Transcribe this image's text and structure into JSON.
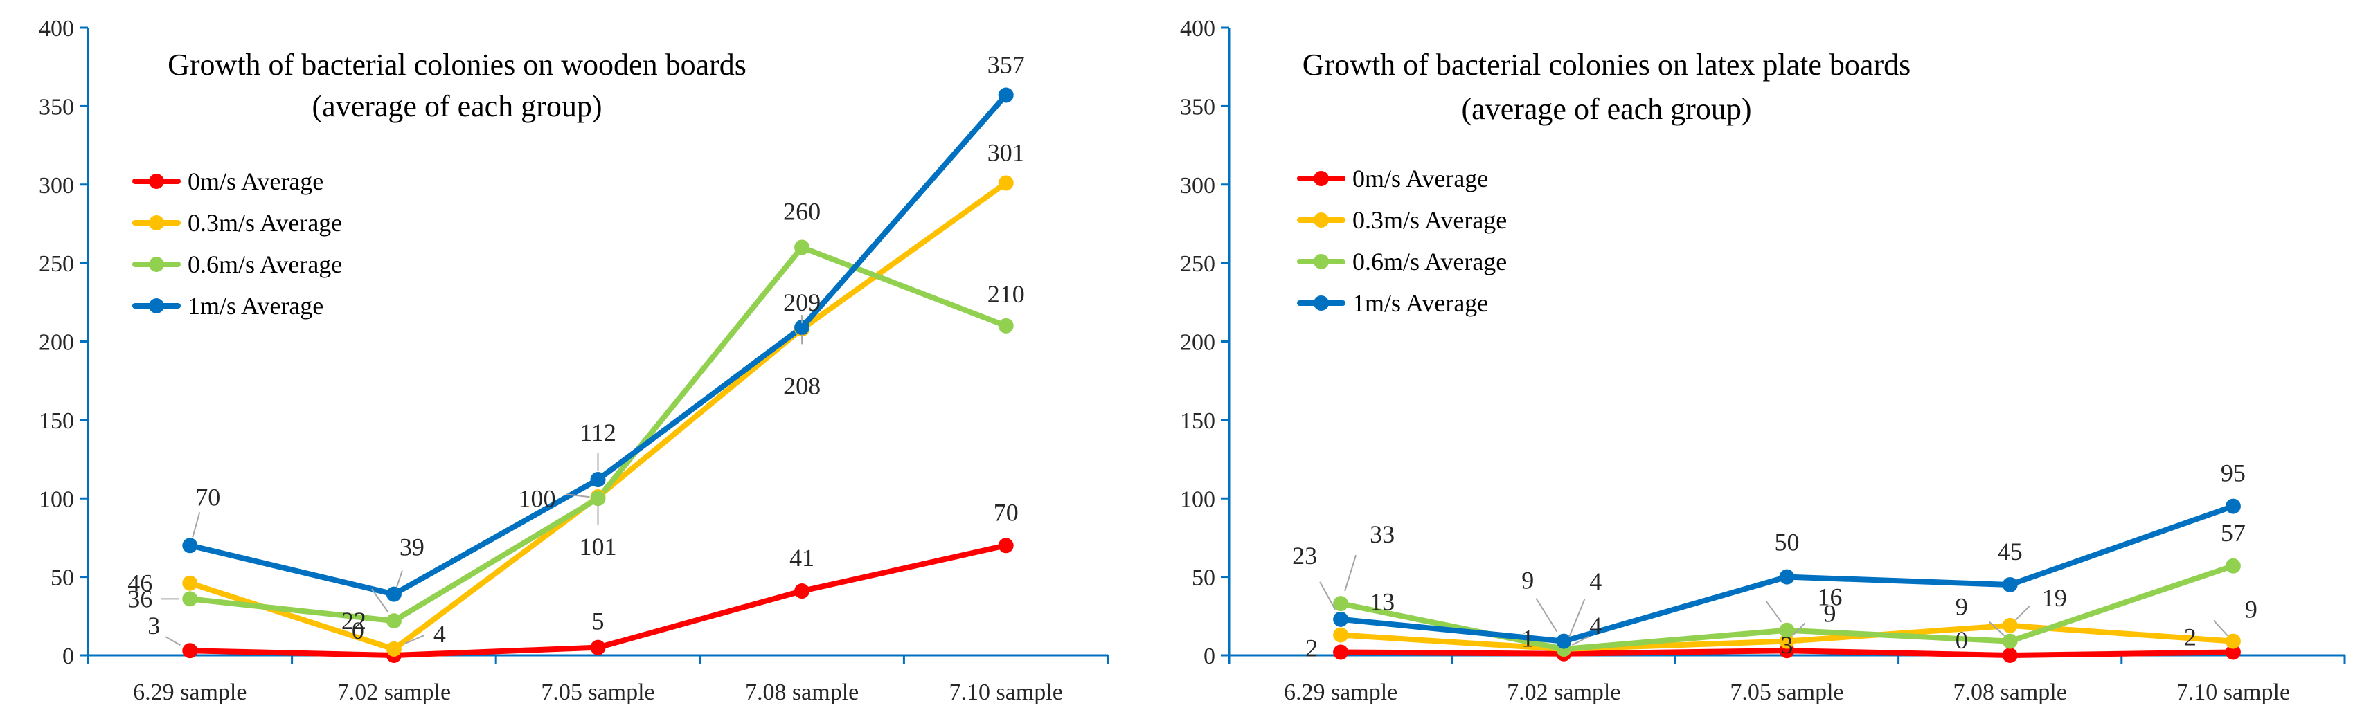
{
  "chart_data": [
    {
      "type": "line",
      "title": "Growth of bacterial colonies on wooden boards",
      "subtitle": "(average of each group)",
      "categories": [
        "6.29 sample",
        "7.02 sample",
        "7.05 sample",
        "7.08 sample",
        "7.10 sample"
      ],
      "ylim": [
        0,
        400
      ],
      "yticks": [
        "0",
        "50",
        "100",
        "150",
        "200",
        "250",
        "300",
        "350",
        "400"
      ],
      "legend_position": "upper-left",
      "series": [
        {
          "name": "0m/s Average",
          "color": "#ff0000",
          "values": [
            3,
            0,
            5,
            41,
            70
          ],
          "labels": [
            "3",
            "0",
            "5",
            "41",
            "70"
          ]
        },
        {
          "name": "0.3m/s Average",
          "color": "#ffc000",
          "values": [
            46,
            4,
            101,
            208,
            301
          ],
          "labels": [
            "46",
            "4",
            "101",
            "208",
            "301"
          ]
        },
        {
          "name": "0.6m/s Average",
          "color": "#92d050",
          "values": [
            36,
            22,
            100,
            260,
            210
          ],
          "labels": [
            "36",
            "22",
            "100",
            "260",
            "210"
          ]
        },
        {
          "name": "1m/s Average",
          "color": "#0070c0",
          "values": [
            70,
            39,
            112,
            209,
            357
          ],
          "labels": [
            "70",
            "39",
            "112",
            "209",
            "357"
          ]
        }
      ]
    },
    {
      "type": "line",
      "title": "Growth of bacterial colonies on latex plate boards",
      "subtitle": "(average of each group)",
      "categories": [
        "6.29 sample",
        "7.02 sample",
        "7.05 sample",
        "7.08 sample",
        "7.10 sample"
      ],
      "ylim": [
        0,
        400
      ],
      "yticks": [
        "0",
        "50",
        "100",
        "150",
        "200",
        "250",
        "300",
        "350",
        "400"
      ],
      "legend_position": "upper-left",
      "series": [
        {
          "name": "0m/s Average",
          "color": "#ff0000",
          "values": [
            2,
            1,
            3,
            0,
            2
          ],
          "labels": [
            "2",
            "1",
            "3",
            "0",
            "2"
          ]
        },
        {
          "name": "0.3m/s Average",
          "color": "#ffc000",
          "values": [
            13,
            4,
            9,
            19,
            9
          ],
          "labels": [
            "13",
            "4",
            "9",
            "19",
            "9"
          ]
        },
        {
          "name": "0.6m/s Average",
          "color": "#92d050",
          "values": [
            33,
            4,
            16,
            9,
            57
          ],
          "labels": [
            "33",
            "4",
            "16",
            "9",
            "57"
          ]
        },
        {
          "name": "1m/s Average",
          "color": "#0070c0",
          "values": [
            23,
            9,
            50,
            45,
            95
          ],
          "labels": [
            "23",
            "9",
            "50",
            "45",
            "95"
          ]
        }
      ]
    }
  ]
}
